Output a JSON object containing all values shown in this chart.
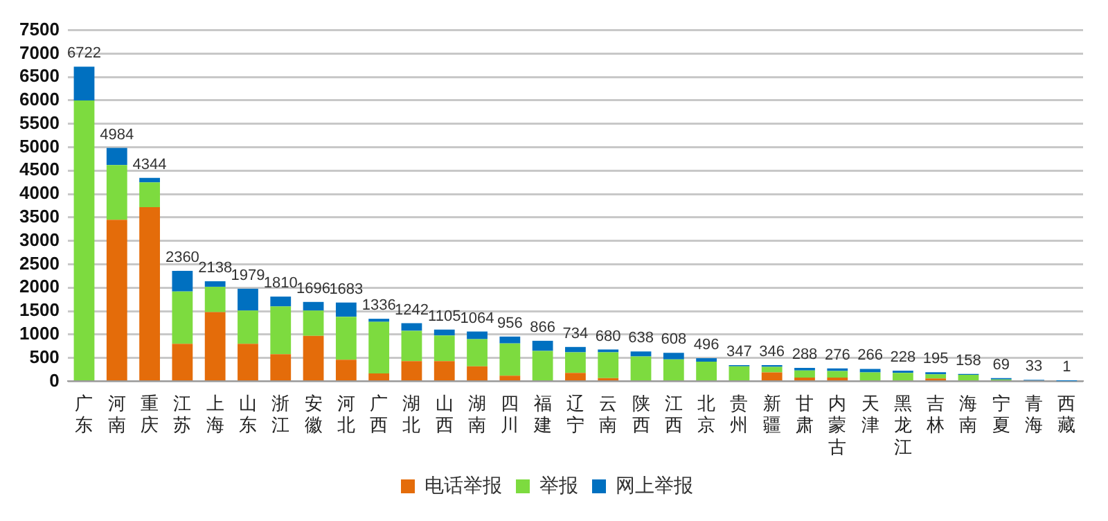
{
  "chart_data": {
    "type": "bar",
    "stacked": true,
    "categories": [
      "广东",
      "河南",
      "重庆",
      "江苏",
      "上海",
      "山东",
      "浙江",
      "安徽",
      "河北",
      "广西",
      "湖北",
      "山西",
      "湖南",
      "四川",
      "福建",
      "辽宁",
      "云南",
      "陕西",
      "江西",
      "北京",
      "贵州",
      "新疆",
      "甘肃",
      "内蒙古",
      "天津",
      "黑龙江",
      "吉林",
      "海南",
      "宁夏",
      "青海",
      "西藏"
    ],
    "series": [
      {
        "name": "电话举报",
        "color": "#e46c0a",
        "values": [
          0,
          3450,
          3720,
          800,
          1480,
          800,
          580,
          970,
          460,
          170,
          430,
          430,
          320,
          120,
          0,
          180,
          70,
          20,
          0,
          20,
          0,
          190,
          80,
          80,
          0,
          0,
          60,
          0,
          0,
          0,
          0
        ]
      },
      {
        "name": "举报",
        "color": "#7ddb3f",
        "values": [
          6000,
          1170,
          530,
          1120,
          540,
          710,
          1020,
          540,
          920,
          1100,
          650,
          550,
          580,
          690,
          650,
          440,
          550,
          510,
          470,
          400,
          320,
          120,
          150,
          140,
          190,
          180,
          90,
          140,
          40,
          0,
          0
        ]
      },
      {
        "name": "网上举报",
        "color": "#0070c0",
        "values": [
          722,
          364,
          94,
          440,
          118,
          469,
          210,
          186,
          303,
          66,
          162,
          125,
          164,
          146,
          216,
          114,
          60,
          108,
          138,
          76,
          27,
          36,
          58,
          56,
          76,
          48,
          45,
          18,
          29,
          33,
          1
        ]
      }
    ],
    "totals": [
      "6722",
      "4984",
      "4344",
      "2360",
      "2138",
      "1979",
      "1810",
      "1696",
      "1683",
      "1336",
      "1242",
      "1105",
      "1064",
      "956",
      "866",
      "734",
      "680",
      "638",
      "608",
      "496",
      "347",
      "346",
      "288",
      "276",
      "266",
      "228",
      "195",
      "158",
      "69",
      "33",
      "1"
    ],
    "ylim": [
      0,
      7500
    ],
    "yticks": [
      0,
      500,
      1000,
      1500,
      2000,
      2500,
      3000,
      3500,
      4000,
      4500,
      5000,
      5500,
      6000,
      6500,
      7000,
      7500
    ],
    "grid": "y",
    "legend": "bottom"
  }
}
